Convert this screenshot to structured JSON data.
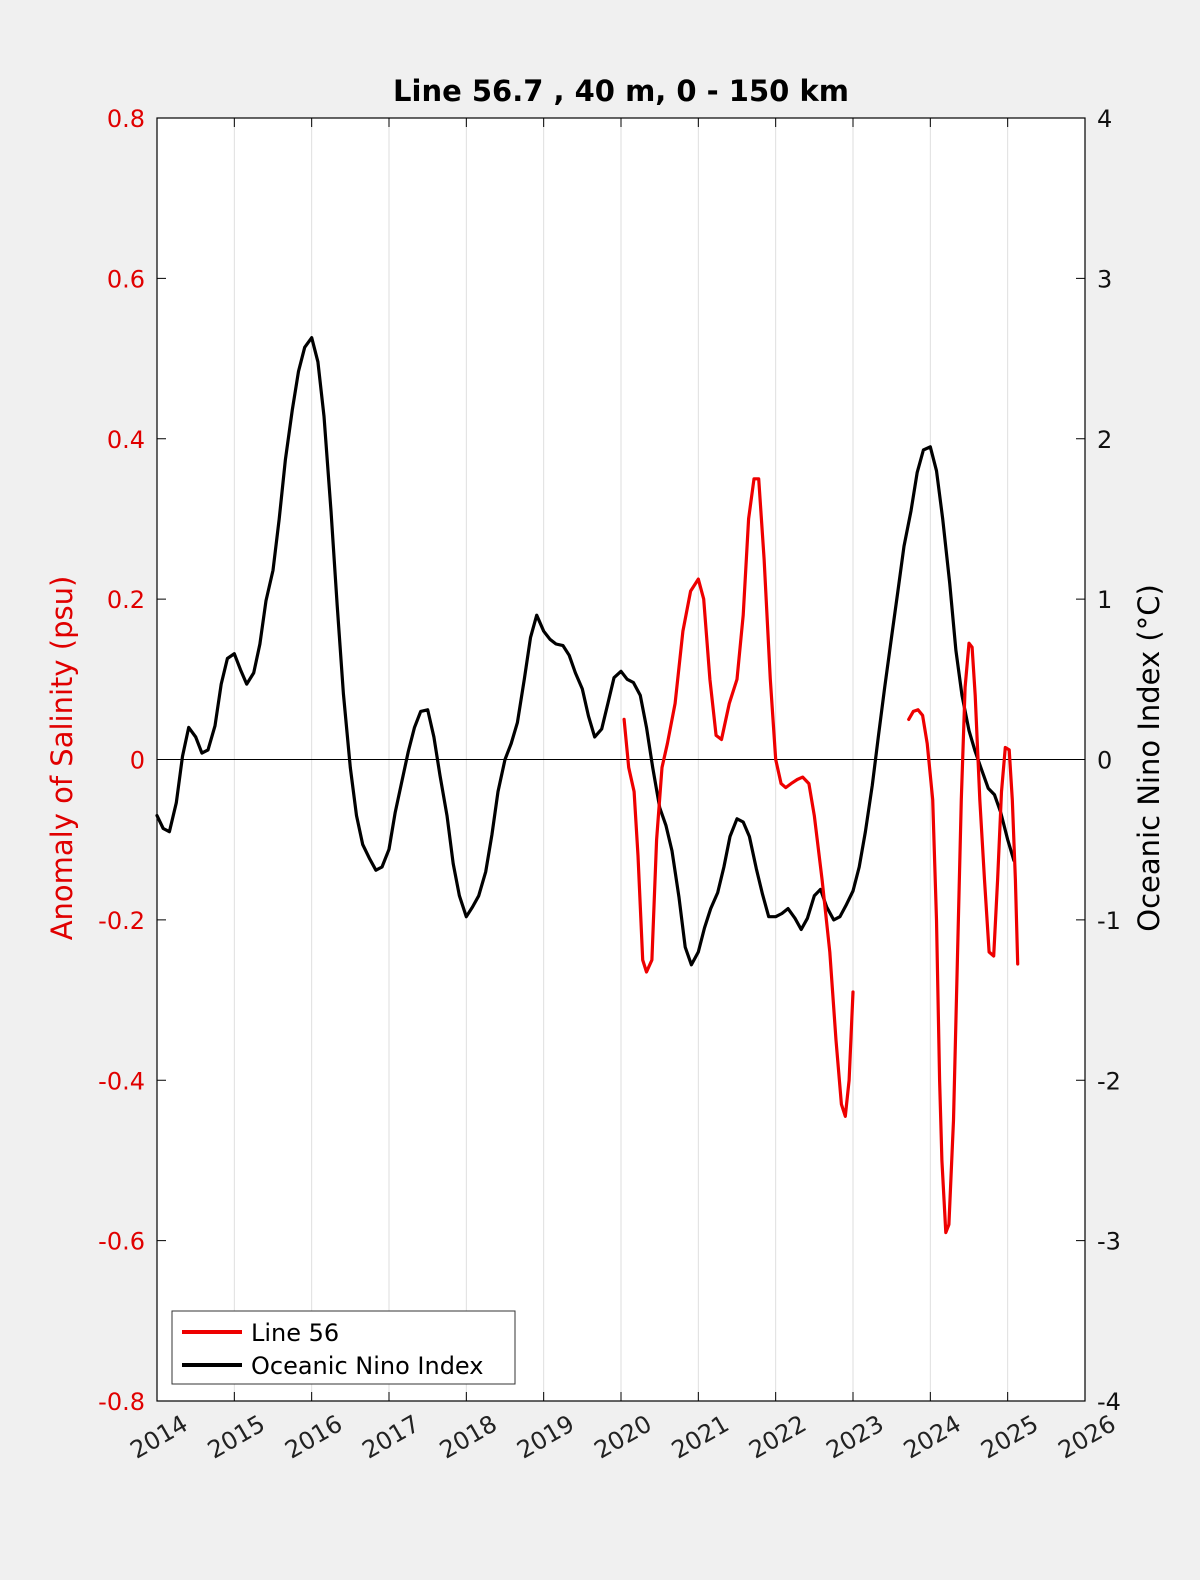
{
  "chart_data": {
    "type": "line",
    "title": "Line 56.7 , 40 m, 0 - 150 km",
    "xlabel": "",
    "ylabel_left": "Anomaly of Salinity (psu)",
    "ylabel_right": "Oceanic Nino Index (°C)",
    "xlim": [
      2014,
      2026
    ],
    "ylim_left": [
      -0.8,
      0.8
    ],
    "ylim_right": [
      -4,
      4
    ],
    "x_ticks": [
      "2014",
      "2015",
      "2016",
      "2017",
      "2018",
      "2019",
      "2020",
      "2021",
      "2022",
      "2023",
      "2024",
      "2025",
      "2026"
    ],
    "y_ticks_left": [
      "-0.8",
      "-0.6",
      "-0.4",
      "-0.2",
      "0",
      "0.2",
      "0.4",
      "0.6",
      "0.8"
    ],
    "y_ticks_right": [
      "-4",
      "-3",
      "-2",
      "-1",
      "0",
      "1",
      "2",
      "3",
      "4"
    ],
    "grid": "vertical",
    "legend_position": "bottom-left",
    "colors": {
      "line56": "#ee0000",
      "oni": "#000000",
      "plot_bg": "#ffffff",
      "figure_bg": "#f0f0f0"
    },
    "series": [
      {
        "name": "Line 56",
        "axis": "left",
        "segments": [
          [
            [
              2020.04,
              0.05
            ],
            [
              2020.1,
              -0.01
            ],
            [
              2020.17,
              -0.04
            ],
            [
              2020.22,
              -0.12
            ],
            [
              2020.28,
              -0.25
            ],
            [
              2020.33,
              -0.265
            ],
            [
              2020.4,
              -0.25
            ],
            [
              2020.46,
              -0.1
            ],
            [
              2020.53,
              -0.01
            ],
            [
              2020.6,
              0.02
            ],
            [
              2020.7,
              0.07
            ],
            [
              2020.8,
              0.16
            ],
            [
              2020.9,
              0.21
            ],
            [
              2021.0,
              0.225
            ],
            [
              2021.07,
              0.2
            ],
            [
              2021.15,
              0.1
            ],
            [
              2021.23,
              0.03
            ],
            [
              2021.3,
              0.025
            ],
            [
              2021.4,
              0.07
            ],
            [
              2021.5,
              0.1
            ],
            [
              2021.58,
              0.18
            ],
            [
              2021.65,
              0.3
            ],
            [
              2021.72,
              0.35
            ],
            [
              2021.78,
              0.35
            ],
            [
              2021.85,
              0.25
            ],
            [
              2021.93,
              0.1
            ],
            [
              2022.0,
              0.0
            ],
            [
              2022.07,
              -0.03
            ],
            [
              2022.13,
              -0.035
            ],
            [
              2022.2,
              -0.03
            ],
            [
              2022.28,
              -0.025
            ],
            [
              2022.35,
              -0.022
            ],
            [
              2022.43,
              -0.03
            ],
            [
              2022.5,
              -0.07
            ],
            [
              2022.6,
              -0.15
            ],
            [
              2022.7,
              -0.24
            ],
            [
              2022.78,
              -0.35
            ],
            [
              2022.85,
              -0.43
            ],
            [
              2022.9,
              -0.445
            ],
            [
              2022.95,
              -0.4
            ],
            [
              2023.0,
              -0.29
            ]
          ],
          [
            [
              2023.72,
              0.05
            ],
            [
              2023.78,
              0.06
            ],
            [
              2023.84,
              0.062
            ],
            [
              2023.9,
              0.055
            ],
            [
              2023.96,
              0.02
            ],
            [
              2024.03,
              -0.05
            ],
            [
              2024.08,
              -0.2
            ],
            [
              2024.12,
              -0.4
            ],
            [
              2024.15,
              -0.5
            ],
            [
              2024.2,
              -0.59
            ],
            [
              2024.24,
              -0.58
            ],
            [
              2024.3,
              -0.45
            ],
            [
              2024.35,
              -0.25
            ],
            [
              2024.4,
              -0.05
            ],
            [
              2024.45,
              0.09
            ],
            [
              2024.5,
              0.145
            ],
            [
              2024.54,
              0.14
            ],
            [
              2024.58,
              0.08
            ],
            [
              2024.64,
              -0.05
            ],
            [
              2024.7,
              -0.15
            ],
            [
              2024.76,
              -0.24
            ],
            [
              2024.82,
              -0.245
            ],
            [
              2024.87,
              -0.15
            ],
            [
              2024.92,
              -0.04
            ],
            [
              2024.97,
              0.015
            ],
            [
              2025.02,
              0.012
            ],
            [
              2025.06,
              -0.05
            ],
            [
              2025.1,
              -0.15
            ],
            [
              2025.13,
              -0.255
            ]
          ]
        ]
      },
      {
        "name": "Oceanic Nino Index",
        "axis": "right",
        "points": [
          [
            2014.0,
            -0.35
          ],
          [
            2014.08,
            -0.43
          ],
          [
            2014.16,
            -0.45
          ],
          [
            2014.25,
            -0.27
          ],
          [
            2014.33,
            0.02
          ],
          [
            2014.41,
            0.2
          ],
          [
            2014.5,
            0.14
          ],
          [
            2014.58,
            0.04
          ],
          [
            2014.66,
            0.06
          ],
          [
            2014.75,
            0.21
          ],
          [
            2014.83,
            0.47
          ],
          [
            2014.91,
            0.63
          ],
          [
            2015.0,
            0.66
          ],
          [
            2015.08,
            0.56
          ],
          [
            2015.16,
            0.47
          ],
          [
            2015.25,
            0.54
          ],
          [
            2015.33,
            0.72
          ],
          [
            2015.41,
            0.99
          ],
          [
            2015.5,
            1.18
          ],
          [
            2015.58,
            1.5
          ],
          [
            2015.66,
            1.87
          ],
          [
            2015.75,
            2.18
          ],
          [
            2015.83,
            2.42
          ],
          [
            2015.91,
            2.57
          ],
          [
            2016.0,
            2.63
          ],
          [
            2016.08,
            2.48
          ],
          [
            2016.16,
            2.14
          ],
          [
            2016.25,
            1.55
          ],
          [
            2016.33,
            0.96
          ],
          [
            2016.41,
            0.41
          ],
          [
            2016.5,
            -0.05
          ],
          [
            2016.58,
            -0.35
          ],
          [
            2016.66,
            -0.53
          ],
          [
            2016.75,
            -0.62
          ],
          [
            2016.83,
            -0.69
          ],
          [
            2016.91,
            -0.67
          ],
          [
            2017.0,
            -0.56
          ],
          [
            2017.08,
            -0.33
          ],
          [
            2017.16,
            -0.15
          ],
          [
            2017.25,
            0.05
          ],
          [
            2017.33,
            0.2
          ],
          [
            2017.41,
            0.3
          ],
          [
            2017.5,
            0.31
          ],
          [
            2017.58,
            0.14
          ],
          [
            2017.66,
            -0.1
          ],
          [
            2017.75,
            -0.35
          ],
          [
            2017.83,
            -0.65
          ],
          [
            2017.91,
            -0.85
          ],
          [
            2018.0,
            -0.98
          ],
          [
            2018.08,
            -0.92
          ],
          [
            2018.16,
            -0.85
          ],
          [
            2018.25,
            -0.7
          ],
          [
            2018.33,
            -0.47
          ],
          [
            2018.41,
            -0.2
          ],
          [
            2018.5,
            0.0
          ],
          [
            2018.58,
            0.1
          ],
          [
            2018.66,
            0.23
          ],
          [
            2018.75,
            0.5
          ],
          [
            2018.83,
            0.76
          ],
          [
            2018.91,
            0.9
          ],
          [
            2019.0,
            0.8
          ],
          [
            2019.08,
            0.75
          ],
          [
            2019.16,
            0.72
          ],
          [
            2019.25,
            0.71
          ],
          [
            2019.33,
            0.65
          ],
          [
            2019.41,
            0.54
          ],
          [
            2019.5,
            0.44
          ],
          [
            2019.58,
            0.27
          ],
          [
            2019.66,
            0.14
          ],
          [
            2019.75,
            0.19
          ],
          [
            2019.83,
            0.35
          ],
          [
            2019.91,
            0.51
          ],
          [
            2020.0,
            0.55
          ],
          [
            2020.08,
            0.5
          ],
          [
            2020.16,
            0.48
          ],
          [
            2020.25,
            0.4
          ],
          [
            2020.33,
            0.2
          ],
          [
            2020.41,
            -0.05
          ],
          [
            2020.5,
            -0.3
          ],
          [
            2020.58,
            -0.41
          ],
          [
            2020.66,
            -0.57
          ],
          [
            2020.75,
            -0.86
          ],
          [
            2020.83,
            -1.17
          ],
          [
            2020.91,
            -1.28
          ],
          [
            2021.0,
            -1.2
          ],
          [
            2021.08,
            -1.05
          ],
          [
            2021.16,
            -0.93
          ],
          [
            2021.25,
            -0.83
          ],
          [
            2021.33,
            -0.67
          ],
          [
            2021.41,
            -0.48
          ],
          [
            2021.5,
            -0.37
          ],
          [
            2021.58,
            -0.39
          ],
          [
            2021.66,
            -0.48
          ],
          [
            2021.75,
            -0.68
          ],
          [
            2021.83,
            -0.84
          ],
          [
            2021.91,
            -0.98
          ],
          [
            2022.0,
            -0.98
          ],
          [
            2022.08,
            -0.96
          ],
          [
            2022.16,
            -0.93
          ],
          [
            2022.25,
            -0.99
          ],
          [
            2022.33,
            -1.06
          ],
          [
            2022.41,
            -0.99
          ],
          [
            2022.5,
            -0.85
          ],
          [
            2022.58,
            -0.81
          ],
          [
            2022.66,
            -0.92
          ],
          [
            2022.75,
            -1.0
          ],
          [
            2022.83,
            -0.98
          ],
          [
            2022.91,
            -0.91
          ],
          [
            2023.0,
            -0.82
          ],
          [
            2023.08,
            -0.67
          ],
          [
            2023.16,
            -0.45
          ],
          [
            2023.25,
            -0.16
          ],
          [
            2023.33,
            0.15
          ],
          [
            2023.41,
            0.45
          ],
          [
            2023.5,
            0.77
          ],
          [
            2023.58,
            1.05
          ],
          [
            2023.66,
            1.33
          ],
          [
            2023.75,
            1.55
          ],
          [
            2023.83,
            1.79
          ],
          [
            2023.91,
            1.93
          ],
          [
            2024.0,
            1.95
          ],
          [
            2024.08,
            1.8
          ],
          [
            2024.16,
            1.5
          ],
          [
            2024.25,
            1.1
          ],
          [
            2024.33,
            0.68
          ],
          [
            2024.41,
            0.4
          ],
          [
            2024.5,
            0.18
          ],
          [
            2024.58,
            0.05
          ],
          [
            2024.66,
            -0.06
          ],
          [
            2024.75,
            -0.18
          ],
          [
            2024.83,
            -0.22
          ],
          [
            2024.91,
            -0.33
          ],
          [
            2025.0,
            -0.5
          ],
          [
            2025.08,
            -0.63
          ]
        ]
      }
    ]
  }
}
